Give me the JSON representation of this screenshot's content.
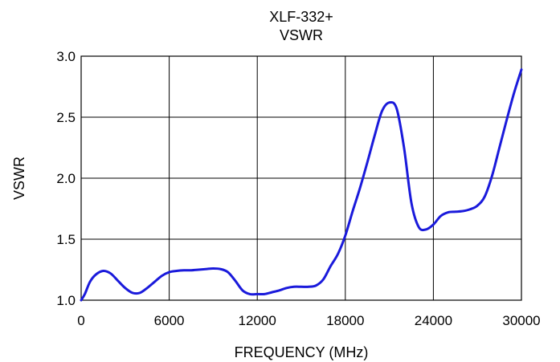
{
  "chart_data": {
    "type": "line",
    "title": "XLF-332+",
    "subtitle": "VSWR",
    "xlabel": "FREQUENCY (MHz)",
    "ylabel": "VSWR",
    "xlim": [
      0,
      30000
    ],
    "ylim": [
      1.0,
      3.0
    ],
    "x_ticks": [
      0,
      6000,
      12000,
      18000,
      24000,
      30000
    ],
    "x_tick_labels": [
      "0",
      "6000",
      "12000",
      "18000",
      "24000",
      "30000"
    ],
    "y_ticks": [
      1.0,
      1.5,
      2.0,
      2.5,
      3.0
    ],
    "y_tick_labels": [
      "1.0",
      "1.5",
      "2.0",
      "2.5",
      "3.0"
    ],
    "grid": true,
    "series": [
      {
        "color": "#1a1adb",
        "x": [
          0,
          250,
          600,
          1000,
          1500,
          2000,
          2500,
          3000,
          3500,
          4000,
          4500,
          5000,
          5500,
          6000,
          6500,
          7000,
          7500,
          8000,
          8500,
          9000,
          9500,
          10000,
          10500,
          11000,
          11500,
          12000,
          12500,
          13000,
          13500,
          14000,
          14500,
          15000,
          15500,
          16000,
          16500,
          17000,
          17500,
          18000,
          18500,
          19000,
          19500,
          20000,
          20500,
          21000,
          21500,
          22000,
          22500,
          23000,
          23500,
          24000,
          24500,
          25000,
          25500,
          26000,
          26500,
          27000,
          27500,
          28000,
          28500,
          29000,
          29500,
          30000
        ],
        "y": [
          1.0,
          1.05,
          1.15,
          1.21,
          1.24,
          1.22,
          1.16,
          1.1,
          1.06,
          1.06,
          1.1,
          1.15,
          1.2,
          1.23,
          1.24,
          1.245,
          1.245,
          1.25,
          1.255,
          1.26,
          1.255,
          1.23,
          1.16,
          1.08,
          1.05,
          1.05,
          1.05,
          1.065,
          1.08,
          1.1,
          1.11,
          1.11,
          1.11,
          1.12,
          1.17,
          1.28,
          1.38,
          1.53,
          1.73,
          1.92,
          2.13,
          2.35,
          2.55,
          2.62,
          2.57,
          2.25,
          1.8,
          1.6,
          1.58,
          1.62,
          1.69,
          1.72,
          1.725,
          1.73,
          1.745,
          1.775,
          1.85,
          2.02,
          2.25,
          2.48,
          2.7,
          2.89
        ]
      }
    ]
  }
}
